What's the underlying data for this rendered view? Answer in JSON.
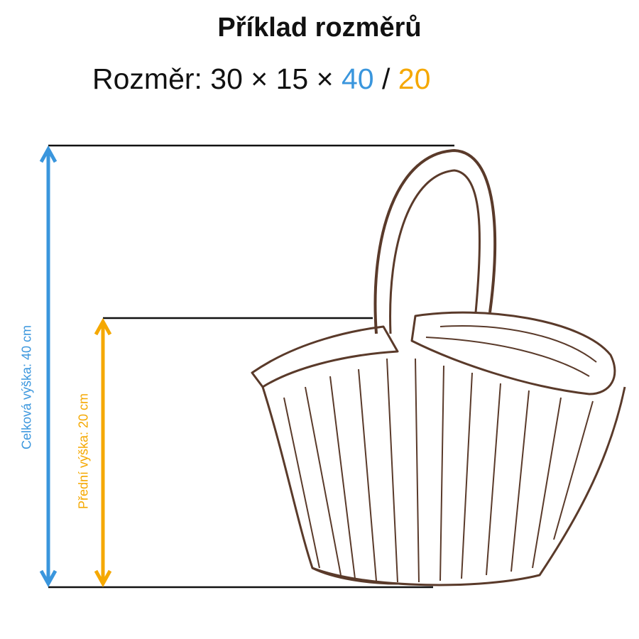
{
  "title": "Příklad rozměrů",
  "subtitle": {
    "prefix": "Rozměr: 30 × 15 × ",
    "total_height": "40",
    "separator": " / ",
    "front_height": "20"
  },
  "labels": {
    "total": "Celková výška: 40 cm",
    "front": "Přední výška: 20 cm"
  },
  "colors": {
    "total": "#3a96dd",
    "front": "#f5a800",
    "basket": "#5a3a2a"
  },
  "illustration": "picnic-basket-sketch"
}
